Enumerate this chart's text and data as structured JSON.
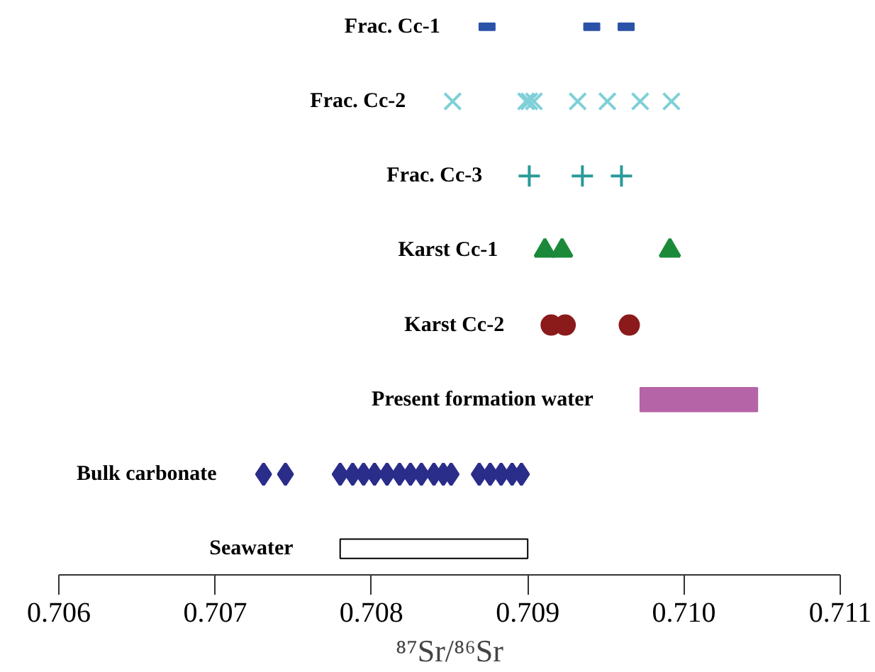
{
  "chart_data": {
    "type": "scatter",
    "orientation": "horizontal",
    "xlabel": "⁸⁷Sr/⁸⁶Sr",
    "categories": [
      "Frac. Cc-1",
      "Frac. Cc-2",
      "Frac. Cc-3",
      "Karst Cc-1",
      "Karst Cc-2",
      "Present formation water",
      "Bulk carbonate",
      "Seawater"
    ],
    "xlim": [
      0.706,
      0.711
    ],
    "xticks": [
      {
        "value": 0.706,
        "label": "0.706"
      },
      {
        "value": 0.707,
        "label": "0.707"
      },
      {
        "value": 0.708,
        "label": "0.708"
      },
      {
        "value": 0.709,
        "label": "0.709"
      },
      {
        "value": 0.71,
        "label": "0.710"
      },
      {
        "value": 0.711,
        "label": "0.711"
      }
    ],
    "grid": false,
    "tick_labels": "x",
    "series": [
      {
        "marker": "square",
        "color": "#2a52a8",
        "x": [
          "Frac. Cc-1",
          "Frac. Cc-1",
          "Frac. Cc-1"
        ],
        "values": [
          0.70874,
          0.70941,
          0.70963
        ]
      },
      {
        "marker": "x",
        "color": "#7fd0d8",
        "x": [
          "Frac. Cc-2",
          "Frac. Cc-2",
          "Frac. Cc-2",
          "Frac. Cc-2",
          "Frac. Cc-2",
          "Frac. Cc-2",
          "Frac. Cc-2",
          "Frac. Cc-2"
        ],
        "values": [
          0.70852,
          0.70899,
          0.70901,
          0.70904,
          0.70932,
          0.70951,
          0.70972,
          0.70992
        ]
      },
      {
        "marker": "cross",
        "color": "#2a9a9a",
        "x": [
          "Frac. Cc-3",
          "Frac. Cc-3",
          "Frac. Cc-3"
        ],
        "values": [
          0.70901,
          0.70935,
          0.7096
        ]
      },
      {
        "marker": "triangle",
        "color": "#1a8a3a",
        "x": [
          "Karst Cc-1",
          "Karst Cc-1",
          "Karst Cc-1"
        ],
        "values": [
          0.70911,
          0.70922,
          0.70991
        ]
      },
      {
        "marker": "circle",
        "color": "#8b1a1a",
        "x": [
          "Karst Cc-2",
          "Karst Cc-2",
          "Karst Cc-2"
        ],
        "values": [
          0.70915,
          0.70924,
          0.70965
        ]
      },
      {
        "type": "bar",
        "color": "#b565a7",
        "x": [
          "Present formation water"
        ],
        "base": [
          0.70972
        ],
        "values": [
          0.00075
        ]
      },
      {
        "marker": "diamond",
        "color": "#2b2d8a",
        "x": [
          "Bulk carbonate",
          "Bulk carbonate",
          "Bulk carbonate",
          "Bulk carbonate",
          "Bulk carbonate",
          "Bulk carbonate",
          "Bulk carbonate",
          "Bulk carbonate",
          "Bulk carbonate",
          "Bulk carbonate",
          "Bulk carbonate",
          "Bulk carbonate",
          "Bulk carbonate",
          "Bulk carbonate",
          "Bulk carbonate",
          "Bulk carbonate",
          "Bulk carbonate",
          "Bulk carbonate"
        ],
        "values": [
          0.70731,
          0.70745,
          0.7078,
          0.70788,
          0.70795,
          0.70802,
          0.7081,
          0.70818,
          0.70825,
          0.70832,
          0.7084,
          0.70846,
          0.70851,
          0.70869,
          0.70876,
          0.70883,
          0.7089,
          0.70896
        ]
      },
      {
        "type": "bar",
        "color": "#ffffff",
        "x": [
          "Seawater"
        ],
        "base": [
          0.7078
        ],
        "values": [
          0.0012
        ]
      }
    ]
  }
}
